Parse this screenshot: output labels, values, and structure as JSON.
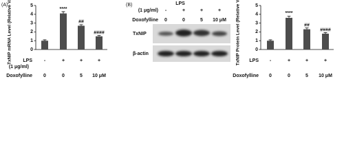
{
  "chart_data": [
    {
      "type": "bar",
      "panel": "(A)",
      "y_label": "TxNIP mRNA Level (Relative Value)",
      "values": [
        1,
        4.1,
        2.7,
        1.5
      ],
      "errors": [
        0.1,
        0.2,
        0.12,
        0.1
      ],
      "annotations": [
        null,
        "****",
        "##",
        "####"
      ],
      "color": "#4d4d4d",
      "ylim": [
        0,
        5
      ],
      "yticks": [
        0,
        1,
        2,
        3,
        4,
        5
      ],
      "conditions": [
        {
          "name": "LPS",
          "sub": "(1 μg/ml)",
          "values": [
            "-",
            "+",
            "+",
            "+"
          ]
        },
        {
          "name": "Doxofylline",
          "values": [
            "0",
            "0",
            "5",
            "10 μM"
          ]
        }
      ]
    },
    {
      "type": "bar",
      "panel": "(B)",
      "y_label": "TxNIP Protein Level (Relative Value)",
      "values": [
        1,
        3.6,
        2.3,
        1.8
      ],
      "errors": [
        0.1,
        0.2,
        0.15,
        0.12
      ],
      "annotations": [
        null,
        "****",
        "##",
        "####"
      ],
      "color": "#4d4d4d",
      "ylim": [
        0,
        5
      ],
      "yticks": [
        0,
        1,
        2,
        3,
        4,
        5
      ],
      "conditions": [
        {
          "name": "LPS",
          "values": [
            "-",
            "+",
            "+",
            "+"
          ]
        },
        {
          "name": "Doxofylline",
          "values": [
            "0",
            "0",
            "5",
            "10 μM"
          ]
        }
      ]
    }
  ],
  "blot": {
    "header": [
      {
        "name": "LPS",
        "sub": "(1 μg/ml)",
        "values": [
          "-",
          "+",
          "+",
          "+"
        ]
      },
      {
        "name": "Doxofylline",
        "values": [
          "0",
          "0",
          "5",
          "10 μM"
        ]
      }
    ],
    "rows": [
      "TxNIP",
      "β-actin"
    ]
  }
}
